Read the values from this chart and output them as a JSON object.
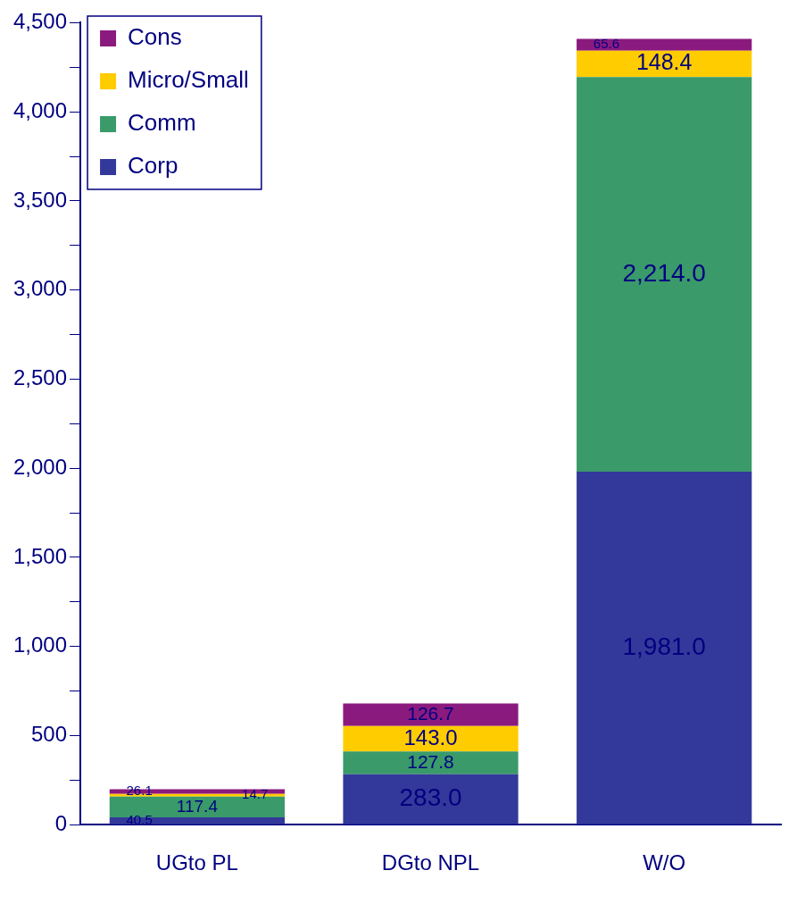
{
  "chart_data": {
    "type": "bar",
    "stacked": true,
    "categories": [
      "UGto PL",
      "DGto NPL",
      "W/O"
    ],
    "series": [
      {
        "name": "Corp",
        "color": "#33399a",
        "values": [
          40.5,
          283.0,
          1981.0
        ],
        "value_labels": [
          "40.5",
          "283.0",
          "1,981.0"
        ]
      },
      {
        "name": "Comm",
        "color": "#3a9a6a",
        "values": [
          117.4,
          127.8,
          2214.0
        ],
        "value_labels": [
          "117.4",
          "127.8",
          "2,214.0"
        ]
      },
      {
        "name": "Micro/Small",
        "color": "#ffcc00",
        "values": [
          14.7,
          143.0,
          148.4
        ],
        "value_labels": [
          "14.7",
          "143.0",
          "148.4"
        ]
      },
      {
        "name": "Cons",
        "color": "#8b1a7f",
        "values": [
          26.1,
          126.7,
          65.6
        ],
        "value_labels": [
          "26.1",
          "126.7",
          "65.6"
        ]
      }
    ],
    "ylim": [
      0,
      4500
    ],
    "yticks": [
      0,
      {
        "value": 250,
        "label": null
      },
      500,
      {
        "value": 750,
        "label": null
      },
      {
        "value": 1000,
        "label": "1,000"
      },
      {
        "value": 1250,
        "label": null
      },
      {
        "value": 1500,
        "label": "1,500"
      },
      {
        "value": 1750,
        "label": null
      },
      {
        "value": 2000,
        "label": "2,000"
      },
      {
        "value": 2250,
        "label": null
      },
      {
        "value": 2500,
        "label": "2,500"
      },
      {
        "value": 2750,
        "label": null
      },
      {
        "value": 3000,
        "label": "3,000"
      },
      {
        "value": 3250,
        "label": null
      },
      {
        "value": 3500,
        "label": "3,500"
      },
      {
        "value": 3750,
        "label": null
      },
      {
        "value": 4000,
        "label": "4,000"
      },
      {
        "value": 4250,
        "label": null
      },
      {
        "value": 4500,
        "label": "4,500"
      }
    ],
    "grid": false,
    "legend": "top left"
  }
}
